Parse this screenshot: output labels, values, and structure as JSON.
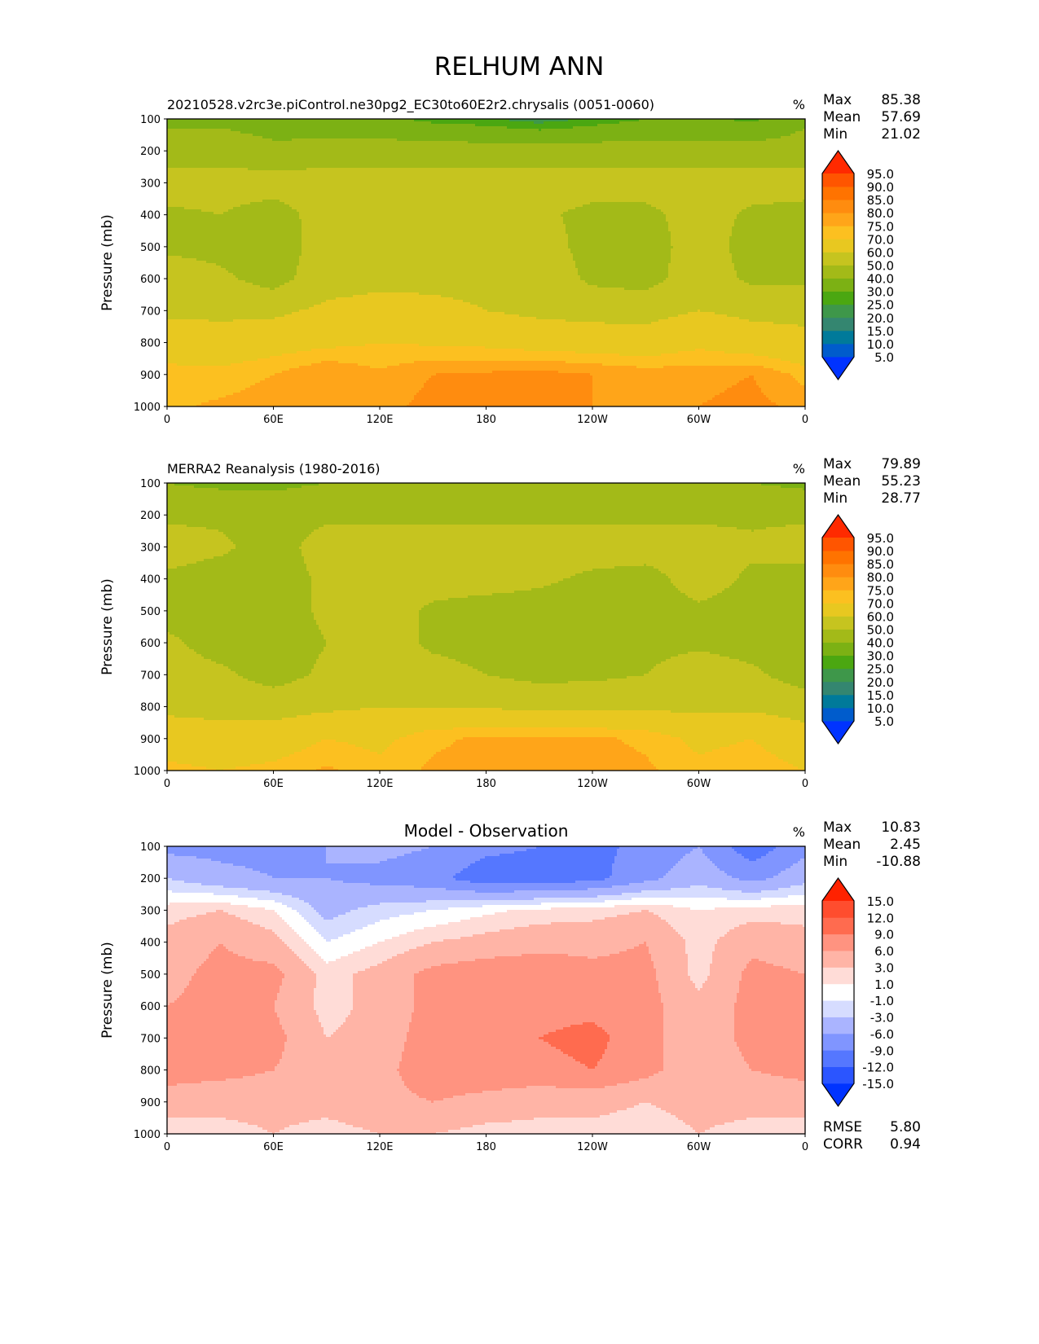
{
  "title": "RELHUM ANN",
  "panels": [
    {
      "title": "20210528.v2rc3e.piControl.ne30pg2_EC30to60E2r2.chrysalis (0051-0060)",
      "title_align": "left",
      "units": "%",
      "stats": {
        "max_label": "Max",
        "max": "85.38",
        "mean_label": "Mean",
        "mean": "57.69",
        "min_label": "Min",
        "min": "21.02"
      },
      "scale": "abs"
    },
    {
      "title": "MERRA2 Reanalysis (1980-2016)",
      "title_align": "left",
      "units": "%",
      "stats": {
        "max_label": "Max",
        "max": "79.89",
        "mean_label": "Mean",
        "mean": "55.23",
        "min_label": "Min",
        "min": "28.77"
      },
      "scale": "abs"
    },
    {
      "title": "Model - Observation",
      "title_align": "center",
      "units": "%",
      "stats": {
        "max_label": "Max",
        "max": "10.83",
        "mean_label": "Mean",
        "mean": "2.45",
        "min_label": "Min",
        "min": "-10.88"
      },
      "scale": "diff",
      "extra": {
        "rmse_label": "RMSE",
        "rmse": "5.80",
        "corr_label": "CORR",
        "corr": "0.94"
      }
    }
  ],
  "chart_data": [
    {
      "type": "heatmap",
      "title": "20210528.v2rc3e.piControl.ne30pg2_EC30to60E2r2.chrysalis (0051-0060)",
      "ylabel": "Pressure (mb)",
      "x_ticks": [
        "0",
        "60E",
        "120E",
        "180",
        "120W",
        "60W",
        "0"
      ],
      "y_ticks": [
        "100",
        "200",
        "300",
        "400",
        "500",
        "600",
        "700",
        "800",
        "900",
        "1000"
      ],
      "xlim": [
        0,
        360
      ],
      "ylim": [
        1000,
        100
      ],
      "lon": [
        0,
        30,
        60,
        90,
        120,
        150,
        180,
        210,
        240,
        270,
        300,
        330,
        360
      ],
      "pressure": [
        100,
        200,
        300,
        400,
        500,
        600,
        700,
        800,
        900,
        1000
      ],
      "values": [
        [
          38,
          38,
          36,
          35,
          32,
          28,
          26,
          22,
          26,
          30,
          32,
          28,
          38
        ],
        [
          45,
          45,
          42,
          43,
          45,
          45,
          45,
          45,
          45,
          45,
          44,
          45,
          45
        ],
        [
          55,
          55,
          55,
          56,
          55,
          55,
          55,
          55,
          55,
          55,
          55,
          55,
          55
        ],
        [
          48,
          50,
          45,
          55,
          55,
          55,
          55,
          52,
          47,
          47,
          55,
          48,
          46
        ],
        [
          48,
          47,
          44,
          55,
          57,
          57,
          57,
          55,
          46,
          45,
          55,
          46,
          47
        ],
        [
          56,
          52,
          46,
          56,
          58,
          58,
          58,
          57,
          48,
          46,
          56,
          48,
          48
        ],
        [
          58,
          58,
          58,
          62,
          63,
          62,
          60,
          58,
          57,
          57,
          60,
          58,
          58
        ],
        [
          66,
          64,
          66,
          68,
          70,
          69,
          68,
          66,
          65,
          64,
          68,
          64,
          62
        ],
        [
          72,
          72,
          75,
          80,
          76,
          80,
          81,
          82,
          80,
          78,
          78,
          80,
          73
        ],
        [
          74,
          76,
          78,
          80,
          78,
          82,
          82,
          82,
          80,
          80,
          80,
          82,
          78
        ]
      ]
    },
    {
      "type": "heatmap",
      "title": "MERRA2 Reanalysis (1980-2016)",
      "ylabel": "Pressure (mb)",
      "x_ticks": [
        "0",
        "60E",
        "120E",
        "180",
        "120W",
        "60W",
        "0"
      ],
      "y_ticks": [
        "100",
        "200",
        "300",
        "400",
        "500",
        "600",
        "700",
        "800",
        "900",
        "1000"
      ],
      "xlim": [
        0,
        360
      ],
      "ylim": [
        1000,
        100
      ],
      "lon": [
        0,
        30,
        60,
        90,
        120,
        150,
        180,
        210,
        240,
        270,
        300,
        330,
        360
      ],
      "pressure": [
        100,
        200,
        300,
        400,
        500,
        600,
        700,
        800,
        900,
        1000
      ],
      "values": [
        [
          40,
          38,
          38,
          40,
          40,
          42,
          42,
          42,
          42,
          40,
          40,
          40,
          38
        ],
        [
          48,
          48,
          46,
          48,
          48,
          48,
          48,
          48,
          48,
          48,
          48,
          48,
          48
        ],
        [
          55,
          52,
          45,
          55,
          55,
          55,
          55,
          55,
          55,
          55,
          55,
          52,
          55
        ],
        [
          48,
          45,
          45,
          52,
          55,
          55,
          55,
          52,
          48,
          46,
          55,
          48,
          45
        ],
        [
          46,
          45,
          45,
          52,
          55,
          48,
          45,
          45,
          44,
          45,
          48,
          46,
          45
        ],
        [
          52,
          46,
          44,
          50,
          55,
          48,
          46,
          45,
          45,
          47,
          48,
          46,
          46
        ],
        [
          54,
          52,
          46,
          52,
          55,
          54,
          50,
          47,
          48,
          50,
          56,
          52,
          45
        ],
        [
          58,
          57,
          56,
          58,
          60,
          60,
          59,
          58,
          58,
          58,
          58,
          58,
          56
        ],
        [
          65,
          64,
          65,
          70,
          68,
          74,
          76,
          76,
          76,
          74,
          68,
          70,
          64
        ],
        [
          72,
          70,
          72,
          76,
          72,
          76,
          77,
          77,
          77,
          76,
          72,
          74,
          70
        ]
      ]
    },
    {
      "type": "heatmap",
      "title": "Model - Observation",
      "ylabel": "Pressure (mb)",
      "x_ticks": [
        "0",
        "60E",
        "120E",
        "180",
        "120W",
        "60W",
        "0"
      ],
      "y_ticks": [
        "100",
        "200",
        "300",
        "400",
        "500",
        "600",
        "700",
        "800",
        "900",
        "1000"
      ],
      "xlim": [
        0,
        360
      ],
      "ylim": [
        1000,
        100
      ],
      "lon": [
        0,
        30,
        60,
        90,
        120,
        150,
        180,
        210,
        240,
        270,
        300,
        330,
        360
      ],
      "pressure": [
        100,
        200,
        300,
        400,
        500,
        600,
        700,
        800,
        900,
        1000
      ],
      "values": [
        [
          -7,
          -7,
          -7,
          -6,
          -5,
          -6,
          -8,
          -9,
          -10,
          -8,
          -6,
          -11,
          -7
        ],
        [
          -3,
          -5,
          -6,
          -6,
          -7,
          -8,
          -11,
          -11,
          -10,
          -7,
          -4,
          -7,
          -4
        ],
        [
          2,
          3,
          1,
          -4,
          -2,
          -1,
          0.5,
          1.5,
          2,
          3,
          1,
          2,
          2
        ],
        [
          4,
          6,
          4,
          -1,
          1,
          3,
          4,
          5,
          5,
          6,
          2,
          5,
          4
        ],
        [
          5,
          7,
          7,
          2,
          4,
          7,
          8,
          8,
          7,
          7,
          2,
          7,
          6
        ],
        [
          6,
          7,
          6,
          2,
          4,
          7,
          8,
          8,
          8,
          7,
          4,
          7,
          6
        ],
        [
          7,
          8,
          7,
          3,
          4,
          8,
          8,
          9,
          10,
          7,
          4,
          7,
          7
        ],
        [
          7,
          7,
          6,
          4,
          5,
          8,
          8,
          8,
          9,
          7,
          4,
          6,
          7
        ],
        [
          5,
          4,
          4,
          4,
          5,
          6,
          5,
          4,
          4,
          3,
          4,
          4,
          4
        ],
        [
          1,
          2,
          3,
          2,
          3,
          3,
          2,
          2,
          2,
          1.5,
          3,
          2,
          2
        ]
      ]
    }
  ],
  "scales": {
    "abs": {
      "levels": [
        5,
        10,
        15,
        20,
        25,
        30,
        40,
        50,
        60,
        70,
        75,
        80,
        85,
        90,
        95
      ],
      "labels": [
        "5.0",
        "10.0",
        "15.0",
        "20.0",
        "25.0",
        "30.0",
        "40.0",
        "50.0",
        "60.0",
        "70.0",
        "75.0",
        "80.0",
        "85.0",
        "90.0",
        "95.0"
      ],
      "colors": [
        "#0033ff",
        "#005ccc",
        "#007a9a",
        "#348670",
        "#3e974a",
        "#4ba711",
        "#7cb114",
        "#a3ba18",
        "#c6c41f",
        "#e8c820",
        "#fcc020",
        "#ffa519",
        "#ff8c0f",
        "#ff7300",
        "#ff5500",
        "#ff2a00"
      ]
    },
    "diff": {
      "levels": [
        -15,
        -12,
        -9,
        -6,
        -3,
        -1,
        1,
        3,
        6,
        9,
        12,
        15
      ],
      "labels": [
        "-15.0",
        "-12.0",
        "-9.0",
        "-6.0",
        "-3.0",
        "-1.0",
        "1.0",
        "3.0",
        "6.0",
        "9.0",
        "12.0",
        "15.0"
      ],
      "colors": [
        "#0033ff",
        "#2b55ff",
        "#5577ff",
        "#8095ff",
        "#aab4ff",
        "#d6dcff",
        "#ffffff",
        "#ffdcd7",
        "#ffb4a6",
        "#ff9380",
        "#ff6b4f",
        "#ff4d2e",
        "#ff2200"
      ]
    }
  }
}
